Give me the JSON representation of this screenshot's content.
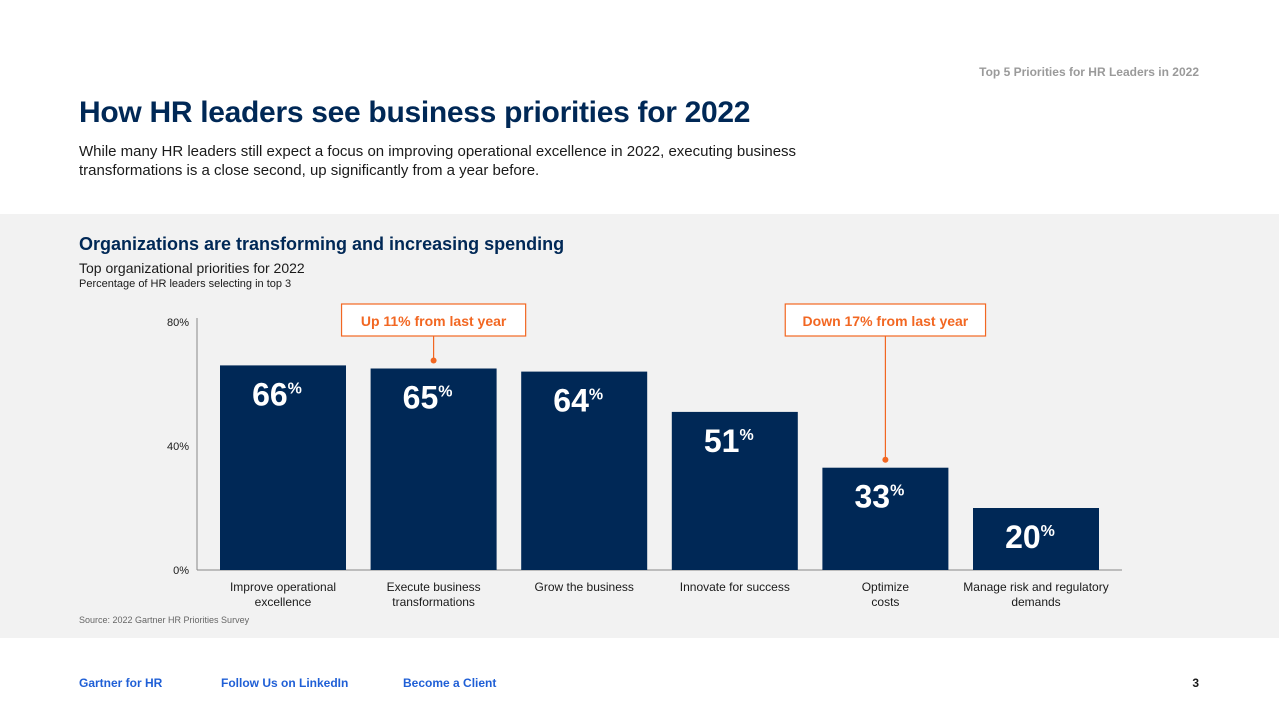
{
  "header_tag": "Top 5 Priorities for HR Leaders in 2022",
  "title": "How HR leaders see business priorities for 2022",
  "subtitle": "While many HR leaders still expect a focus on improving operational excellence in 2022, executing business transformations is a close second, up significantly from a year before.",
  "chart_data": {
    "type": "bar",
    "title": "Organizations are transforming and increasing spending",
    "subtitle": "Top organizational priorities for 2022",
    "ylabel": "Percentage of HR leaders selecting in top 3",
    "categories": [
      "Improve operational excellence",
      "Execute business transformations",
      "Grow the business",
      "Innovate for success",
      "Optimize costs",
      "Manage risk and regulatory demands"
    ],
    "values": [
      66,
      65,
      64,
      51,
      33,
      20
    ],
    "ylim": [
      0,
      80
    ],
    "yticks": [
      "0%",
      "40%",
      "80%"
    ],
    "bar_color": "#002856",
    "annotation_color": "#f26722",
    "annotations": [
      {
        "category_index": 1,
        "text": "Up 11% from last year"
      },
      {
        "category_index": 4,
        "text": "Down 17% from last year"
      }
    ],
    "grid": false
  },
  "source": "Source: 2022 Gartner HR Priorities Survey",
  "footer": {
    "links": [
      "Gartner for HR",
      "Follow Us on LinkedIn",
      "Become a Client"
    ],
    "page_number": "3"
  }
}
